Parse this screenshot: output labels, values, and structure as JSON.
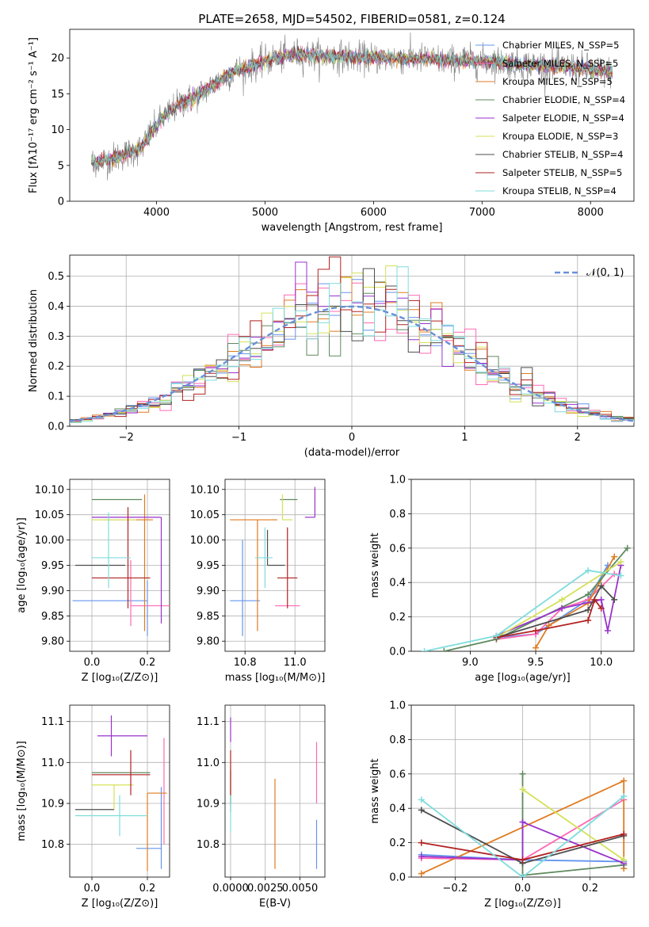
{
  "chart_data": [
    {
      "id": "spectrum",
      "type": "line",
      "title": "PLATE=2658, MJD=54502, FIBERID=0581, z=0.124",
      "xlabel": "wavelength [Angstrom, rest frame]",
      "ylabel": "Flux [fλ10⁻¹⁷ erg cm⁻² s⁻¹ A⁻¹]",
      "xlim": [
        3200,
        8400
      ],
      "ylim": [
        0,
        24
      ],
      "xticks": [
        4000,
        5000,
        6000,
        7000,
        8000
      ],
      "yticks": [
        0,
        5,
        10,
        15,
        20
      ],
      "grid": false,
      "legend_position": "right",
      "continuum": {
        "x": [
          3400,
          3550,
          3700,
          3850,
          3950,
          4050,
          4200,
          4350,
          4500,
          4700,
          4900,
          5100,
          5300,
          5500,
          5700,
          5900,
          6100,
          6300,
          6500,
          6700,
          6900,
          7100,
          7300,
          7500,
          7700,
          7900,
          8100,
          8200
        ],
        "y": [
          5.5,
          5.8,
          6.5,
          7.3,
          9.5,
          11.5,
          13.5,
          14.5,
          16.0,
          18.0,
          19.0,
          20.0,
          20.5,
          20.3,
          20.2,
          20.0,
          20.0,
          20.0,
          19.8,
          19.6,
          19.6,
          19.5,
          19.2,
          19.0,
          18.8,
          18.6,
          18.2,
          18.0
        ]
      },
      "series": [
        {
          "name": "Chabrier MILES, N_SSP=5",
          "color": "#6495ed"
        },
        {
          "name": "Salpeter MILES, N_SSP=5",
          "color": "#ff69b4"
        },
        {
          "name": "Kroupa MILES, N_SSP=5",
          "color": "#e07b20"
        },
        {
          "name": "Chabrier ELODIE, N_SSP=4",
          "color": "#5f8a5f"
        },
        {
          "name": "Salpeter ELODIE, N_SSP=4",
          "color": "#9932cc"
        },
        {
          "name": "Kroupa ELODIE, N_SSP=3",
          "color": "#d4e157"
        },
        {
          "name": "Chabrier STELIB, N_SSP=4",
          "color": "#4d4d4d"
        },
        {
          "name": "Salpeter STELIB, N_SSP=5",
          "color": "#b22222"
        },
        {
          "name": "Kroupa STELIB, N_SSP=4",
          "color": "#7fdcdc"
        }
      ],
      "data_color": "#808080"
    },
    {
      "id": "residuals",
      "type": "line",
      "xlabel": "(data-model)/error",
      "ylabel": "Normed distribution",
      "xlim": [
        -2.5,
        2.5
      ],
      "ylim": [
        0,
        0.57
      ],
      "xticks": [
        -2,
        -1,
        0,
        1,
        2
      ],
      "yticks": [
        0.0,
        0.1,
        0.2,
        0.3,
        0.4,
        0.5
      ],
      "grid": true,
      "legend_position": "top-right",
      "reference_curve": {
        "name": "𝒩(0, 1)",
        "color": "#6b8fd8",
        "style": "dashed"
      },
      "bin_width": 0.1
    },
    {
      "id": "age-vs-Z",
      "type": "scatter",
      "xlabel": "Z [log₁₀(Z/Z⊙)]",
      "ylabel": "age  [log₁₀(age/yr)]",
      "xlim": [
        -0.08,
        0.28
      ],
      "ylim": [
        9.78,
        10.12
      ],
      "xticks": [
        0.0,
        0.2
      ],
      "yticks": [
        9.8,
        9.85,
        9.9,
        9.95,
        10.0,
        10.05,
        10.1
      ],
      "grid": true,
      "points": [
        {
          "x": 0.2,
          "xerr": [
            0.27,
            0.0
          ],
          "y": 9.88,
          "yerr": [
            0.07,
            0.04
          ],
          "color": "#6495ed"
        },
        {
          "x": 0.14,
          "xerr": [
            0.0,
            0.14
          ],
          "y": 9.87,
          "yerr": [
            0.04,
            0.09
          ],
          "color": "#ff69b4"
        },
        {
          "x": 0.19,
          "xerr": [
            0.15,
            0.03
          ],
          "y": 10.04,
          "yerr": [
            0.22,
            0.05
          ],
          "color": "#e07b20"
        },
        {
          "x": 0.08,
          "xerr": [
            0.08,
            0.1
          ],
          "y": 10.08,
          "yerr": [
            0.0,
            0.0
          ],
          "color": "#5f8a5f"
        },
        {
          "x": 0.25,
          "xerr": [
            0.25,
            0.0
          ],
          "y": 10.045,
          "yerr": [
            0.21,
            0.0
          ],
          "color": "#9932cc"
        },
        {
          "x": 0.08,
          "xerr": [
            0.08,
            0.08
          ],
          "y": 10.04,
          "yerr": [
            0.0,
            0.0
          ],
          "color": "#d4e157"
        },
        {
          "x": 0.06,
          "xerr": [
            0.12,
            0.06
          ],
          "y": 9.95,
          "yerr": [
            0.0,
            0.0
          ],
          "color": "#4d4d4d"
        },
        {
          "x": 0.13,
          "xerr": [
            0.13,
            0.08
          ],
          "y": 9.925,
          "yerr": [
            0.06,
            0.14
          ],
          "color": "#b22222"
        },
        {
          "x": 0.06,
          "xerr": [
            0.06,
            0.08
          ],
          "y": 9.965,
          "yerr": [
            0.06,
            0.09
          ],
          "color": "#7fdcdc"
        }
      ]
    },
    {
      "id": "age-vs-mass",
      "type": "scatter",
      "xlabel": "mass [log₁₀(M/M⊙)]",
      "xlim": [
        10.72,
        11.12
      ],
      "ylim": [
        9.78,
        10.12
      ],
      "xticks": [
        10.8,
        11.0
      ],
      "yticks": [
        9.8,
        9.85,
        9.9,
        9.95,
        10.0,
        10.05,
        10.1
      ],
      "grid": true,
      "points": [
        {
          "x": 10.79,
          "xerr": [
            0.05,
            0.07
          ],
          "y": 9.88,
          "yerr": [
            0.07,
            0.12
          ],
          "color": "#6495ed"
        },
        {
          "x": 10.92,
          "xerr": [
            0.0,
            0.1
          ],
          "y": 9.87,
          "yerr": [
            0.0,
            0.0
          ],
          "color": "#ff69b4"
        },
        {
          "x": 10.85,
          "xerr": [
            0.11,
            0.08
          ],
          "y": 10.04,
          "yerr": [
            0.22,
            0.0
          ],
          "color": "#e07b20"
        },
        {
          "x": 10.97,
          "xerr": [
            0.03,
            0.04
          ],
          "y": 10.08,
          "yerr": [
            0.0,
            0.0
          ],
          "color": "#5f8a5f"
        },
        {
          "x": 11.08,
          "xerr": [
            0.04,
            0.0
          ],
          "y": 10.045,
          "yerr": [
            0.0,
            0.06
          ],
          "color": "#9932cc"
        },
        {
          "x": 10.95,
          "xerr": [
            0.0,
            0.04
          ],
          "y": 10.04,
          "yerr": [
            0.0,
            0.05
          ],
          "color": "#d4e157"
        },
        {
          "x": 10.89,
          "xerr": [
            0.0,
            0.07
          ],
          "y": 9.95,
          "yerr": [
            0.0,
            0.07
          ],
          "color": "#4d4d4d"
        },
        {
          "x": 10.97,
          "xerr": [
            0.04,
            0.04
          ],
          "y": 9.925,
          "yerr": [
            0.06,
            0.1
          ],
          "color": "#b22222"
        },
        {
          "x": 10.88,
          "xerr": [
            0.04,
            0.03
          ],
          "y": 9.965,
          "yerr": [
            0.06,
            0.06
          ],
          "color": "#7fdcdc"
        }
      ]
    },
    {
      "id": "massweight-vs-age",
      "type": "line",
      "xlabel": "age  [log₁₀(age/yr)]",
      "ylabel": "mass weight",
      "xlim": [
        8.55,
        10.25
      ],
      "ylim": [
        0.0,
        1.0
      ],
      "xticks": [
        9.0,
        9.5,
        10.0
      ],
      "yticks": [
        0.0,
        0.2,
        0.4,
        0.6,
        0.8,
        1.0
      ],
      "grid": true,
      "series": [
        {
          "color": "#6495ed",
          "x": [
            9.2,
            9.5,
            9.9,
            10.05
          ],
          "y": [
            0.08,
            0.1,
            0.3,
            0.5
          ]
        },
        {
          "color": "#ff69b4",
          "x": [
            9.2,
            9.5,
            9.7,
            9.9,
            10.1
          ],
          "y": [
            0.07,
            0.1,
            0.25,
            0.3,
            0.45
          ]
        },
        {
          "color": "#e07b20",
          "x": [
            9.5,
            9.6,
            9.9,
            10.1
          ],
          "y": [
            0.02,
            0.15,
            0.28,
            0.55
          ]
        },
        {
          "color": "#5f8a5f",
          "x": [
            8.8,
            9.2,
            9.9,
            10.2
          ],
          "y": [
            0.0,
            0.07,
            0.33,
            0.6
          ]
        },
        {
          "color": "#9932cc",
          "x": [
            9.2,
            9.7,
            10.0,
            10.05,
            10.15
          ],
          "y": [
            0.09,
            0.25,
            0.3,
            0.12,
            0.5
          ]
        },
        {
          "color": "#d4e157",
          "x": [
            9.2,
            9.7,
            10.15
          ],
          "y": [
            0.08,
            0.3,
            0.52
          ]
        },
        {
          "color": "#4d4d4d",
          "x": [
            9.2,
            9.9,
            10.0,
            10.1
          ],
          "y": [
            0.08,
            0.24,
            0.38,
            0.3
          ]
        },
        {
          "color": "#b22222",
          "x": [
            9.2,
            9.5,
            9.9,
            9.95,
            10.0
          ],
          "y": [
            0.08,
            0.12,
            0.18,
            0.3,
            0.25
          ]
        },
        {
          "color": "#7fdcdc",
          "x": [
            8.65,
            9.2,
            9.9,
            10.15
          ],
          "y": [
            0.0,
            0.09,
            0.47,
            0.44
          ]
        }
      ]
    },
    {
      "id": "mass-vs-Z",
      "type": "scatter",
      "xlabel": "Z [log₁₀(Z/Z⊙)]",
      "ylabel": "mass [log₁₀(M/M⊙)]",
      "xlim": [
        -0.08,
        0.28
      ],
      "ylim": [
        10.72,
        11.14
      ],
      "xticks": [
        0.0,
        0.2
      ],
      "yticks": [
        10.8,
        10.9,
        11.0,
        11.1
      ],
      "grid": true,
      "points": [
        {
          "x": 0.25,
          "xerr": [
            0.09,
            0.0
          ],
          "y": 10.79,
          "yerr": [
            0.05,
            0.15
          ],
          "color": "#6495ed"
        },
        {
          "x": 0.26,
          "xerr": [
            0.0,
            0.0
          ],
          "y": 10.92,
          "yerr": [
            0.12,
            0.14
          ],
          "color": "#ff69b4"
        },
        {
          "x": 0.2,
          "xerr": [
            0.0,
            0.07
          ],
          "y": 10.925,
          "yerr": [
            0.19,
            0.0
          ],
          "color": "#e07b20"
        },
        {
          "x": 0.08,
          "xerr": [
            0.08,
            0.13
          ],
          "y": 10.975,
          "yerr": [
            0.0,
            0.0
          ],
          "color": "#5f8a5f"
        },
        {
          "x": 0.07,
          "xerr": [
            0.05,
            0.13
          ],
          "y": 11.065,
          "yerr": [
            0.05,
            0.05
          ],
          "color": "#9932cc"
        },
        {
          "x": 0.08,
          "xerr": [
            0.08,
            0.07
          ],
          "y": 10.945,
          "yerr": [
            0.06,
            0.0
          ],
          "color": "#d4e157"
        },
        {
          "x": 0.01,
          "xerr": [
            0.07,
            0.07
          ],
          "y": 10.885,
          "yerr": [
            0.0,
            0.0
          ],
          "color": "#4d4d4d"
        },
        {
          "x": 0.14,
          "xerr": [
            0.14,
            0.07
          ],
          "y": 10.97,
          "yerr": [
            0.05,
            0.06
          ],
          "color": "#b22222"
        },
        {
          "x": 0.1,
          "xerr": [
            0.16,
            0.1
          ],
          "y": 10.87,
          "yerr": [
            0.05,
            0.05
          ],
          "color": "#7fdcdc"
        }
      ]
    },
    {
      "id": "mass-vs-EBV",
      "type": "scatter",
      "xlabel": "E(B-V)",
      "xlim": [
        -0.0004,
        0.0068
      ],
      "ylim": [
        10.72,
        11.14
      ],
      "xticks": [
        0.0,
        0.0025,
        0.005
      ],
      "xtick_labels": [
        "0.0000",
        "0.0025",
        "0.0050"
      ],
      "yticks": [
        10.8,
        10.9,
        11.0,
        11.1
      ],
      "grid": true,
      "points": [
        {
          "x": 0.0062,
          "xerr": [
            0,
            0
          ],
          "y": 10.79,
          "yerr": [
            0.05,
            0.07
          ],
          "color": "#6495ed"
        },
        {
          "x": 0.0062,
          "xerr": [
            0,
            0
          ],
          "y": 10.93,
          "yerr": [
            0.03,
            0.12
          ],
          "color": "#ff69b4"
        },
        {
          "x": 0.0032,
          "xerr": [
            0,
            0
          ],
          "y": 10.85,
          "yerr": [
            0.11,
            0.11
          ],
          "color": "#e07b20"
        },
        {
          "x": 0.0,
          "xerr": [
            0,
            0
          ],
          "y": 10.93,
          "yerr": [
            0.03,
            0.05
          ],
          "color": "#5f8a5f"
        },
        {
          "x": 0.0,
          "xerr": [
            0,
            0
          ],
          "y": 11.08,
          "yerr": [
            0.03,
            0.03
          ],
          "color": "#9932cc"
        },
        {
          "x": 0.0,
          "xerr": [
            0,
            0
          ],
          "y": 10.95,
          "yerr": [
            0.04,
            0.04
          ],
          "color": "#d4e157"
        },
        {
          "x": 0.0,
          "xerr": [
            0,
            0
          ],
          "y": 10.9,
          "yerr": [
            0.02,
            0.02
          ],
          "color": "#4d4d4d"
        },
        {
          "x": 0.0,
          "xerr": [
            0,
            0
          ],
          "y": 10.97,
          "yerr": [
            0.05,
            0.06
          ],
          "color": "#b22222"
        },
        {
          "x": 0.0,
          "xerr": [
            0,
            0
          ],
          "y": 10.87,
          "yerr": [
            0.04,
            0.05
          ],
          "color": "#7fdcdc"
        }
      ]
    },
    {
      "id": "massweight-vs-Z",
      "type": "line",
      "xlabel": "Z [log₁₀(Z/Z⊙)]",
      "ylabel": "mass weight",
      "xlim": [
        -0.33,
        0.33
      ],
      "ylim": [
        0.0,
        1.0
      ],
      "xticks": [
        -0.2,
        0.0,
        0.2
      ],
      "yticks": [
        0.0,
        0.2,
        0.4,
        0.6,
        0.8,
        1.0
      ],
      "grid": true,
      "series": [
        {
          "color": "#6495ed",
          "x": [
            -0.3,
            0.0,
            0.3
          ],
          "y": [
            0.13,
            0.1,
            0.09
          ]
        },
        {
          "color": "#ff69b4",
          "x": [
            -0.3,
            0.0,
            0.3
          ],
          "y": [
            0.11,
            0.1,
            0.45
          ]
        },
        {
          "color": "#e07b20",
          "x": [
            -0.3,
            0.3,
            0.3
          ],
          "y": [
            0.02,
            0.56,
            0.05
          ]
        },
        {
          "color": "#5f8a5f",
          "x": [
            0.0,
            0.0,
            0.3
          ],
          "y": [
            0.6,
            0.01,
            0.07
          ]
        },
        {
          "color": "#9932cc",
          "x": [
            -0.3,
            0.0,
            0.0,
            0.3
          ],
          "y": [
            0.12,
            0.1,
            0.32,
            0.08
          ]
        },
        {
          "color": "#d4e157",
          "x": [
            0.0,
            0.3
          ],
          "y": [
            0.51,
            0.1
          ]
        },
        {
          "color": "#4d4d4d",
          "x": [
            -0.3,
            0.0,
            0.3
          ],
          "y": [
            0.39,
            0.08,
            0.24
          ]
        },
        {
          "color": "#b22222",
          "x": [
            -0.3,
            0.0,
            0.3
          ],
          "y": [
            0.2,
            0.1,
            0.25
          ]
        },
        {
          "color": "#7fdcdc",
          "x": [
            -0.3,
            0.0,
            0.3
          ],
          "y": [
            0.45,
            0.0,
            0.47
          ]
        }
      ]
    }
  ]
}
